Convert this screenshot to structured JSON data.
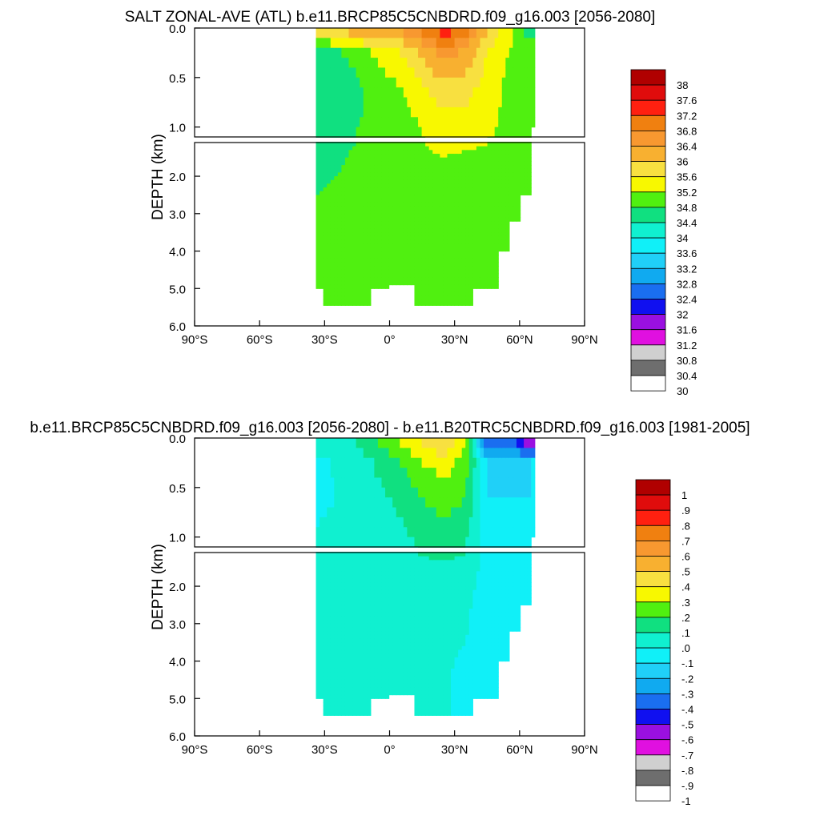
{
  "panels": [
    {
      "title": "SALT ZONAL-AVE (ATL) b.e11.BRCP85C5CNBDRD.f09_g16.003 [2056-2080]",
      "ylabel": "DEPTH (km)",
      "xticks": [
        "90°S",
        "60°S",
        "30°S",
        "0°",
        "30°N",
        "60°N",
        "90°N"
      ],
      "yticks_upper": [
        "0.0",
        "0.5",
        "1.0"
      ],
      "yticks_lower": [
        "2.0",
        "3.0",
        "4.0",
        "5.0",
        "6.0"
      ],
      "colorbar_labels": [
        "38",
        "37.6",
        "37.2",
        "36.8",
        "36.4",
        "36",
        "35.6",
        "35.2",
        "34.8",
        "34.4",
        "34",
        "33.6",
        "33.2",
        "32.8",
        "32.4",
        "32",
        "31.6",
        "31.2",
        "30.8",
        "30.4",
        "30"
      ]
    },
    {
      "title": "b.e11.BRCP85C5CNBDRD.f09_g16.003 [2056-2080] - b.e11.B20TRC5CNBDRD.f09_g16.003 [1981-2005]",
      "ylabel": "DEPTH (km)",
      "xticks": [
        "90°S",
        "60°S",
        "30°S",
        "0°",
        "30°N",
        "60°N",
        "90°N"
      ],
      "yticks_upper": [
        "0.0",
        "0.5",
        "1.0"
      ],
      "yticks_lower": [
        "2.0",
        "3.0",
        "4.0",
        "5.0",
        "6.0"
      ],
      "colorbar_labels": [
        "1",
        ".9",
        ".8",
        ".7",
        ".6",
        ".5",
        ".4",
        ".3",
        ".2",
        ".1",
        ".0",
        "-.1",
        "-.2",
        "-.3",
        "-.4",
        "-.5",
        "-.6",
        "-.7",
        "-.8",
        "-.9",
        "-1"
      ]
    }
  ],
  "colors": {
    "palette": [
      "#ffffff",
      "#6e6e6e",
      "#d0d0d0",
      "#e010e0",
      "#9a10e0",
      "#1010f0",
      "#1a6ef0",
      "#10aaf0",
      "#20d0f8",
      "#10f0f8",
      "#10f0d0",
      "#10e080",
      "#50f010",
      "#f8f800",
      "#f8e040",
      "#f8b030",
      "#f89830",
      "#f08010",
      "#ff2010",
      "#e00c0c",
      "#b00000"
    ],
    "outline": "#000000"
  },
  "chart_data": [
    {
      "type": "heatmap",
      "title": "SALT ZONAL-AVE (ATL) b.e11.BRCP85C5CNBDRD.f09_g16.003 [2056-2080]",
      "xlabel": "",
      "ylabel": "DEPTH (km)",
      "xlim": [
        -90,
        90
      ],
      "ylim_upper": [
        0,
        1.1
      ],
      "ylim_lower": [
        1.1,
        6.0
      ],
      "x_lat": [
        -34,
        -25,
        -15,
        -5,
        5,
        15,
        25,
        35,
        45,
        55,
        65
      ],
      "y_depth": [
        0.05,
        0.25,
        0.6,
        1.0,
        1.5,
        2.5,
        3.5,
        4.5,
        5.2
      ],
      "grid": false,
      "legend": "colorbar-right",
      "colorbar_levels": [
        30,
        30.4,
        30.8,
        31.2,
        31.6,
        32,
        32.4,
        32.8,
        33.2,
        33.6,
        34,
        34.4,
        34.8,
        35.2,
        35.6,
        36,
        36.4,
        36.8,
        37.2,
        37.6,
        38
      ],
      "z": [
        [
          35.6,
          34.6,
          34.4,
          34.4,
          34.6,
          34.8,
          34.9,
          34.9,
          34.9
        ],
        [
          35.8,
          34.7,
          34.5,
          34.5,
          34.7,
          34.9,
          34.9,
          34.9,
          34.9
        ],
        [
          36.1,
          35.0,
          34.7,
          34.8,
          34.9,
          34.9,
          34.9,
          34.9,
          34.9
        ],
        [
          36.2,
          35.3,
          35.0,
          34.9,
          34.9,
          34.9,
          34.9,
          34.9,
          34.9
        ],
        [
          36.3,
          35.6,
          35.2,
          35.0,
          34.9,
          34.9,
          34.9,
          34.9,
          34.9
        ],
        [
          36.8,
          36.1,
          35.5,
          35.2,
          35.1,
          34.9,
          34.9,
          34.9,
          34.9
        ],
        [
          37.3,
          36.6,
          35.9,
          35.4,
          35.2,
          34.9,
          34.9,
          34.9,
          34.9
        ],
        [
          36.9,
          36.3,
          35.8,
          35.4,
          35.1,
          34.9,
          34.9,
          34.9,
          34.9
        ],
        [
          36.0,
          35.6,
          35.4,
          35.3,
          35.0,
          34.9,
          34.9,
          34.9,
          34.9
        ],
        [
          35.3,
          35.2,
          35.1,
          35.1,
          34.9,
          34.9,
          34.9,
          34.9,
          34.9
        ],
        [
          34.6,
          35.0,
          35.0,
          34.9,
          34.9,
          34.9,
          34.9,
          34.9,
          34.9
        ]
      ]
    },
    {
      "type": "heatmap",
      "title": "b.e11.BRCP85C5CNBDRD.f09_g16.003 [2056-2080] - b.e11.B20TRC5CNBDRD.f09_g16.003 [1981-2005]",
      "xlabel": "",
      "ylabel": "DEPTH (km)",
      "xlim": [
        -90,
        90
      ],
      "ylim_upper": [
        0,
        1.1
      ],
      "ylim_lower": [
        1.1,
        6.0
      ],
      "x_lat": [
        -34,
        -25,
        -15,
        -5,
        5,
        15,
        25,
        35,
        45,
        55,
        65
      ],
      "y_depth": [
        0.05,
        0.25,
        0.6,
        1.0,
        1.5,
        2.5,
        3.5,
        4.5,
        5.2
      ],
      "grid": false,
      "legend": "colorbar-right",
      "colorbar_levels": [
        -1,
        -0.9,
        -0.8,
        -0.7,
        -0.6,
        -0.5,
        -0.4,
        -0.3,
        -0.2,
        -0.1,
        0,
        0.1,
        0.2,
        0.3,
        0.4,
        0.5,
        0.6,
        0.7,
        0.8,
        0.9,
        1
      ],
      "z": [
        [
          0.05,
          -0.05,
          -0.05,
          0.02,
          0.03,
          0.03,
          0.02,
          0.02,
          0.02
        ],
        [
          0.05,
          0.02,
          0.0,
          0.05,
          0.05,
          0.04,
          0.04,
          0.03,
          0.03
        ],
        [
          0.1,
          0.05,
          0.05,
          0.06,
          0.05,
          0.05,
          0.05,
          0.04,
          0.04
        ],
        [
          0.2,
          0.12,
          0.08,
          0.07,
          0.06,
          0.05,
          0.05,
          0.04,
          0.04
        ],
        [
          0.3,
          0.2,
          0.12,
          0.08,
          0.06,
          0.05,
          0.05,
          0.04,
          0.04
        ],
        [
          0.4,
          0.3,
          0.2,
          0.12,
          0.07,
          0.05,
          0.04,
          0.04,
          0.04
        ],
        [
          0.5,
          0.35,
          0.25,
          0.15,
          0.08,
          0.04,
          0.03,
          0.02,
          0.02
        ],
        [
          0.3,
          0.25,
          0.2,
          0.12,
          0.05,
          0.02,
          0.0,
          -0.05,
          -0.05
        ],
        [
          -0.4,
          -0.1,
          -0.1,
          -0.05,
          -0.03,
          -0.05,
          -0.05,
          -0.05,
          -0.05
        ],
        [
          -0.3,
          -0.15,
          -0.1,
          -0.08,
          -0.05,
          -0.05,
          -0.05,
          -0.05,
          -0.05
        ],
        [
          -0.6,
          -0.1,
          -0.1,
          -0.05,
          -0.05,
          -0.05,
          -0.05,
          -0.05,
          -0.05
        ]
      ]
    }
  ]
}
